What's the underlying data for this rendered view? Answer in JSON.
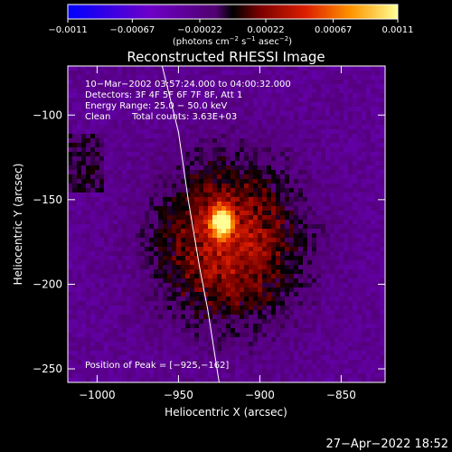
{
  "chart_data": {
    "type": "heatmap",
    "title": "Reconstructed RHESSI Image",
    "xlabel": "Heliocentric X (arcsec)",
    "ylabel": "Heliocentric Y (arcsec)",
    "xlim": [
      -1018,
      -823
    ],
    "ylim": [
      -258,
      -71
    ],
    "x_ticks": [
      -1000,
      -950,
      -900,
      -850
    ],
    "x_tick_labels": [
      "−1000",
      "−950",
      "−900",
      "−850"
    ],
    "y_ticks": [
      -100,
      -150,
      -200,
      -250
    ],
    "y_tick_labels": [
      "−100",
      "−150",
      "−200",
      "−250"
    ],
    "colorbar": {
      "range": [
        -0.0011,
        0.0011
      ],
      "ticks": [
        -0.0011,
        -0.00067,
        -0.00022,
        0.00022,
        0.00067,
        0.0011
      ],
      "tick_labels": [
        "−0.0011",
        "−0.00067",
        "−0.00022",
        "0.00022",
        "0.00067",
        "0.0011"
      ],
      "label_prefix": "(photons cm",
      "label_exp1": "−2",
      "label_mid1": " s",
      "label_exp2": "−1",
      "label_mid2": " asec",
      "label_exp3": "−2",
      "label_suffix": ")"
    },
    "annotations": {
      "time_range": "10−Mar−2002 03:57:24.000 to 04:00:32.000",
      "detectors": "Detectors: 3F 4F 5F 6F 7F 8F, Att 1",
      "energy_range": "Energy Range: 25.0 − 50.0 keV",
      "clean_label": "Clean",
      "total_counts": "Total counts: 3.63E+03",
      "peak_position": "Position of Peak = [−925,−162]"
    },
    "peak": {
      "x": -925,
      "y": -162
    },
    "limb_curve": [
      [
        -960,
        -71
      ],
      [
        -950,
        -110
      ],
      [
        -944,
        -150
      ],
      [
        -937,
        -190
      ],
      [
        -932,
        -215
      ],
      [
        -925,
        -258
      ]
    ]
  },
  "timestamp": "27−Apr−2022 18:52"
}
